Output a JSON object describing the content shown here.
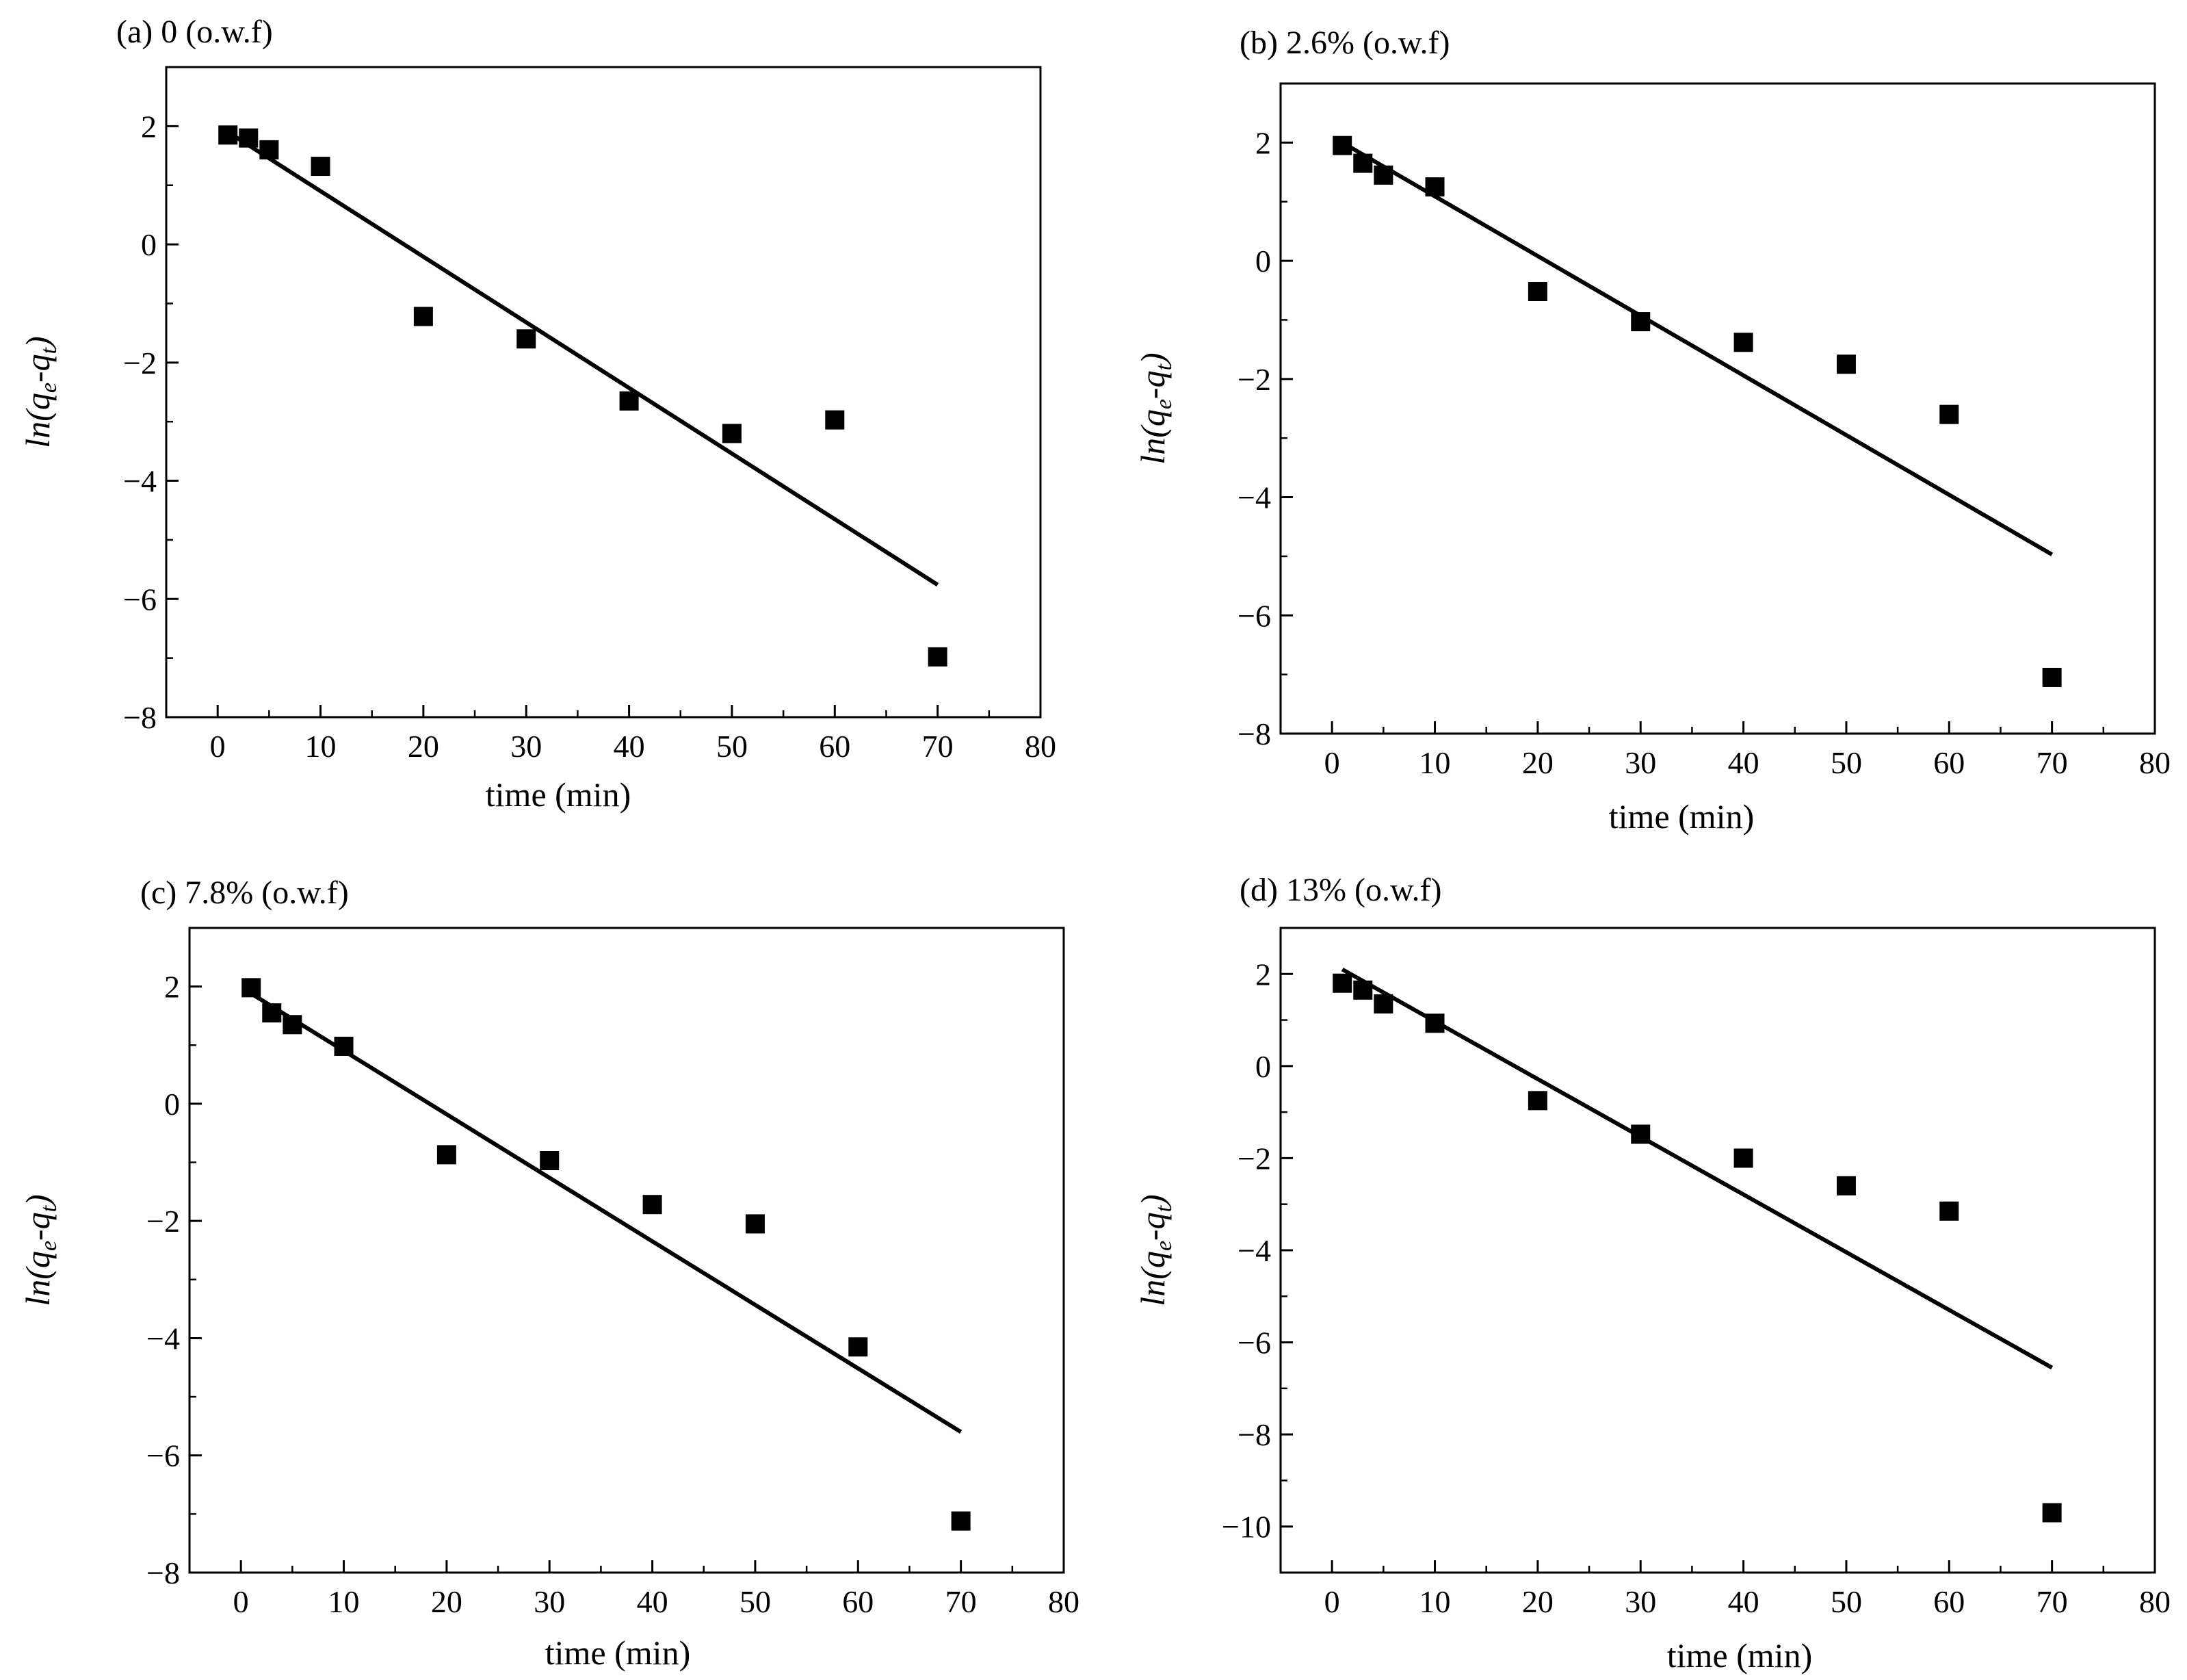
{
  "chart_data": [
    {
      "type": "scatter",
      "panel_label": "(a) 0 (o.w.f)",
      "xlabel": "time (min)",
      "ylabel_base": "ln(q",
      "ylabel_sub1": "e",
      "ylabel_mid": "-q",
      "ylabel_sub2": "t",
      "ylabel_end": ")",
      "xlim": [
        -5,
        80
      ],
      "ylim": [
        -8,
        3
      ],
      "xticks": [
        0,
        10,
        20,
        30,
        40,
        50,
        60,
        70,
        80
      ],
      "xtick_labels": [
        "0",
        "10",
        "20",
        "30",
        "40",
        "50",
        "60",
        "70",
        "80"
      ],
      "yticks": [
        -8,
        -6,
        -4,
        -2,
        0,
        2
      ],
      "ytick_labels": [
        "−8",
        "−6",
        "−4",
        "−2",
        "0",
        "2"
      ],
      "series": [
        {
          "name": "data",
          "x": [
            1,
            3,
            5,
            10,
            20,
            30,
            40,
            50,
            60,
            70
          ],
          "y": [
            1.85,
            1.8,
            1.6,
            1.32,
            -1.22,
            -1.6,
            -2.65,
            -3.2,
            -2.97,
            -6.98
          ]
        },
        {
          "name": "fit",
          "type": "line",
          "x": [
            1,
            70
          ],
          "y": [
            1.9,
            -5.76
          ]
        }
      ]
    },
    {
      "type": "scatter",
      "panel_label": "(b) 2.6% (o.w.f)",
      "xlabel": "time (min)",
      "ylabel_base": "ln(q",
      "ylabel_sub1": "e",
      "ylabel_mid": "-q",
      "ylabel_sub2": "t",
      "ylabel_end": ")",
      "xlim": [
        -5,
        80
      ],
      "ylim": [
        -8,
        3
      ],
      "xticks": [
        0,
        10,
        20,
        30,
        40,
        50,
        60,
        70,
        80
      ],
      "xtick_labels": [
        "0",
        "10",
        "20",
        "30",
        "40",
        "50",
        "60",
        "70",
        "80"
      ],
      "yticks": [
        -8,
        -6,
        -4,
        -2,
        0,
        2
      ],
      "ytick_labels": [
        "−8",
        "−6",
        "−4",
        "−2",
        "0",
        "2"
      ],
      "series": [
        {
          "name": "data",
          "x": [
            1,
            3,
            5,
            10,
            20,
            30,
            40,
            50,
            60,
            70
          ],
          "y": [
            1.95,
            1.65,
            1.45,
            1.25,
            -0.52,
            -1.03,
            -1.38,
            -1.75,
            -2.6,
            -7.05
          ]
        },
        {
          "name": "fit",
          "type": "line",
          "x": [
            1,
            70
          ],
          "y": [
            2.0,
            -4.97
          ]
        }
      ]
    },
    {
      "type": "scatter",
      "panel_label": "(c) 7.8% (o.w.f)",
      "xlabel": "time (min)",
      "ylabel_base": "ln(q",
      "ylabel_sub1": "e",
      "ylabel_mid": "-q",
      "ylabel_sub2": "t",
      "ylabel_end": ")",
      "xlim": [
        -5,
        80
      ],
      "ylim": [
        -8,
        3
      ],
      "xticks": [
        0,
        10,
        20,
        30,
        40,
        50,
        60,
        70,
        80
      ],
      "xtick_labels": [
        "0",
        "10",
        "20",
        "30",
        "40",
        "50",
        "60",
        "70",
        "80"
      ],
      "yticks": [
        -8,
        -6,
        -4,
        -2,
        0,
        2
      ],
      "ytick_labels": [
        "−8",
        "−6",
        "−4",
        "−2",
        "0",
        "2"
      ],
      "series": [
        {
          "name": "data",
          "x": [
            1,
            3,
            5,
            10,
            20,
            30,
            40,
            50,
            60,
            70
          ],
          "y": [
            1.98,
            1.55,
            1.35,
            0.98,
            -0.87,
            -0.97,
            -1.72,
            -2.05,
            -4.15,
            -7.12
          ]
        },
        {
          "name": "fit",
          "type": "line",
          "x": [
            1,
            70
          ],
          "y": [
            1.88,
            -5.6
          ]
        }
      ]
    },
    {
      "type": "scatter",
      "panel_label": "(d) 13% (o.w.f)",
      "xlabel": "time (min)",
      "ylabel_base": "ln(q",
      "ylabel_sub1": "e",
      "ylabel_mid": "-q",
      "ylabel_sub2": "t",
      "ylabel_end": ")",
      "xlim": [
        -5,
        80
      ],
      "ylim": [
        -11,
        3
      ],
      "xticks": [
        0,
        10,
        20,
        30,
        40,
        50,
        60,
        70,
        80
      ],
      "xtick_labels": [
        "0",
        "10",
        "20",
        "30",
        "40",
        "50",
        "60",
        "70",
        "80"
      ],
      "yticks": [
        -10,
        -8,
        -6,
        -4,
        -2,
        0,
        2
      ],
      "ytick_labels": [
        "−10",
        "−8",
        "−6",
        "−4",
        "−2",
        "0",
        "2"
      ],
      "series": [
        {
          "name": "data",
          "x": [
            1,
            3,
            5,
            10,
            20,
            30,
            40,
            50,
            60,
            70
          ],
          "y": [
            1.8,
            1.65,
            1.35,
            0.93,
            -0.75,
            -1.48,
            -2.0,
            -2.6,
            -3.15,
            -9.7
          ]
        },
        {
          "name": "fit",
          "type": "line",
          "x": [
            1,
            70
          ],
          "y": [
            2.1,
            -6.55
          ]
        }
      ]
    }
  ]
}
